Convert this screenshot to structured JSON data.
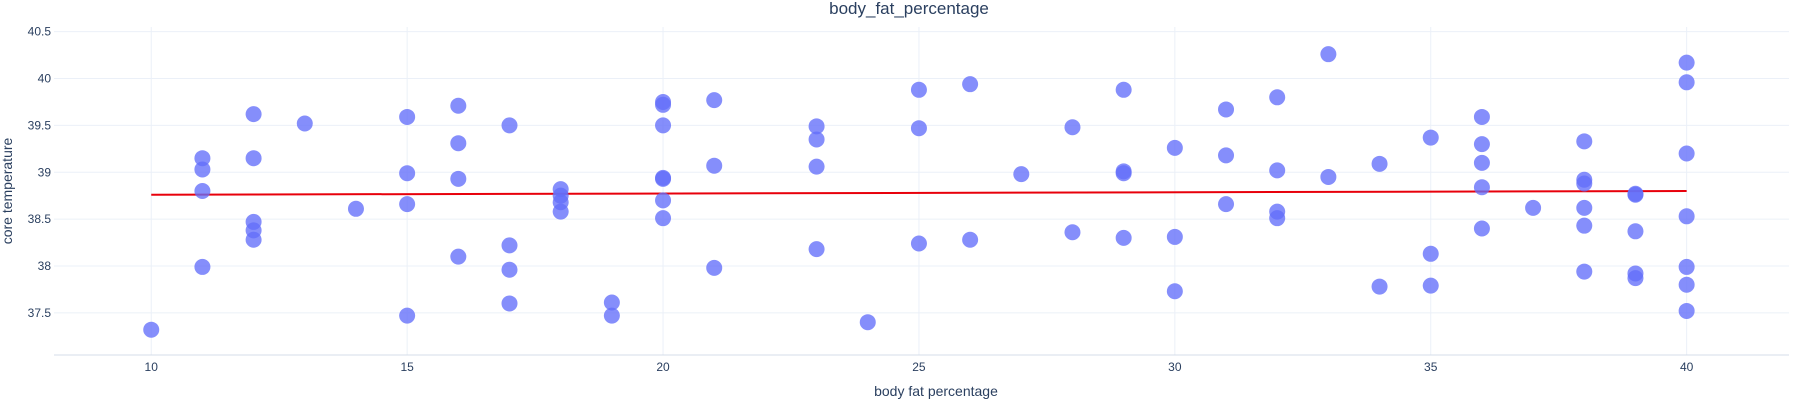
{
  "chart_data": {
    "type": "scatter",
    "title": "body_fat_percentage",
    "xlabel": "body fat percentage",
    "ylabel": "core temperature",
    "xlim": [
      8.1,
      42
    ],
    "ylim": [
      37.05,
      40.55
    ],
    "xticks": [
      10,
      15,
      20,
      25,
      30,
      35,
      40
    ],
    "xtick_labels": [
      "10",
      "15",
      "20",
      "25",
      "30",
      "35",
      "40"
    ],
    "yticks": [
      37.5,
      38,
      38.5,
      39,
      39.5,
      40,
      40.5
    ],
    "ytick_labels": [
      "37.5",
      "38",
      "38.5",
      "39",
      "39.5",
      "40",
      "40.5"
    ],
    "grid": true,
    "marker_color": "#636efa",
    "trendline_color": "#e8000b",
    "trendline": {
      "x": [
        10,
        40
      ],
      "y": [
        38.76,
        38.8
      ]
    },
    "points": [
      {
        "x": 10,
        "y": 37.32
      },
      {
        "x": 11,
        "y": 39.15
      },
      {
        "x": 11,
        "y": 39.03
      },
      {
        "x": 11,
        "y": 38.8
      },
      {
        "x": 11,
        "y": 37.99
      },
      {
        "x": 12,
        "y": 39.62
      },
      {
        "x": 12,
        "y": 39.15
      },
      {
        "x": 12,
        "y": 38.47
      },
      {
        "x": 12,
        "y": 38.38
      },
      {
        "x": 12,
        "y": 38.28
      },
      {
        "x": 13,
        "y": 39.52
      },
      {
        "x": 14,
        "y": 38.61
      },
      {
        "x": 15,
        "y": 39.59
      },
      {
        "x": 15,
        "y": 38.99
      },
      {
        "x": 15,
        "y": 38.66
      },
      {
        "x": 15,
        "y": 37.47
      },
      {
        "x": 16,
        "y": 39.71
      },
      {
        "x": 16,
        "y": 39.31
      },
      {
        "x": 16,
        "y": 38.93
      },
      {
        "x": 16,
        "y": 38.1
      },
      {
        "x": 17,
        "y": 39.5
      },
      {
        "x": 17,
        "y": 38.22
      },
      {
        "x": 17,
        "y": 37.96
      },
      {
        "x": 17,
        "y": 37.6
      },
      {
        "x": 18,
        "y": 38.82
      },
      {
        "x": 18,
        "y": 38.75
      },
      {
        "x": 18,
        "y": 38.68
      },
      {
        "x": 18,
        "y": 38.58
      },
      {
        "x": 19,
        "y": 37.61
      },
      {
        "x": 19,
        "y": 37.47
      },
      {
        "x": 20,
        "y": 39.75
      },
      {
        "x": 20,
        "y": 39.72
      },
      {
        "x": 20,
        "y": 39.5
      },
      {
        "x": 20,
        "y": 38.94
      },
      {
        "x": 20,
        "y": 38.93
      },
      {
        "x": 20,
        "y": 38.7
      },
      {
        "x": 20,
        "y": 38.51
      },
      {
        "x": 21,
        "y": 39.77
      },
      {
        "x": 21,
        "y": 39.07
      },
      {
        "x": 21,
        "y": 37.98
      },
      {
        "x": 23,
        "y": 39.49
      },
      {
        "x": 23,
        "y": 39.35
      },
      {
        "x": 23,
        "y": 39.06
      },
      {
        "x": 23,
        "y": 38.18
      },
      {
        "x": 24,
        "y": 37.4
      },
      {
        "x": 25,
        "y": 39.88
      },
      {
        "x": 25,
        "y": 39.47
      },
      {
        "x": 25,
        "y": 38.24
      },
      {
        "x": 26,
        "y": 39.94
      },
      {
        "x": 26,
        "y": 38.28
      },
      {
        "x": 27,
        "y": 38.98
      },
      {
        "x": 28,
        "y": 39.48
      },
      {
        "x": 28,
        "y": 38.36
      },
      {
        "x": 29,
        "y": 39.88
      },
      {
        "x": 29,
        "y": 39.01
      },
      {
        "x": 29,
        "y": 38.99
      },
      {
        "x": 29,
        "y": 38.3
      },
      {
        "x": 30,
        "y": 39.26
      },
      {
        "x": 30,
        "y": 38.31
      },
      {
        "x": 30,
        "y": 37.73
      },
      {
        "x": 31,
        "y": 39.67
      },
      {
        "x": 31,
        "y": 39.18
      },
      {
        "x": 31,
        "y": 38.66
      },
      {
        "x": 32,
        "y": 39.8
      },
      {
        "x": 32,
        "y": 39.02
      },
      {
        "x": 32,
        "y": 38.58
      },
      {
        "x": 32,
        "y": 38.51
      },
      {
        "x": 33,
        "y": 40.26
      },
      {
        "x": 33,
        "y": 38.95
      },
      {
        "x": 34,
        "y": 39.09
      },
      {
        "x": 34,
        "y": 37.78
      },
      {
        "x": 35,
        "y": 39.37
      },
      {
        "x": 35,
        "y": 38.13
      },
      {
        "x": 35,
        "y": 37.79
      },
      {
        "x": 36,
        "y": 39.59
      },
      {
        "x": 36,
        "y": 39.3
      },
      {
        "x": 36,
        "y": 39.1
      },
      {
        "x": 36,
        "y": 38.84
      },
      {
        "x": 36,
        "y": 38.4
      },
      {
        "x": 37,
        "y": 38.62
      },
      {
        "x": 38,
        "y": 39.33
      },
      {
        "x": 38,
        "y": 38.92
      },
      {
        "x": 38,
        "y": 38.88
      },
      {
        "x": 38,
        "y": 38.62
      },
      {
        "x": 38,
        "y": 38.43
      },
      {
        "x": 38,
        "y": 37.94
      },
      {
        "x": 39,
        "y": 38.77
      },
      {
        "x": 39,
        "y": 38.76
      },
      {
        "x": 39,
        "y": 38.37
      },
      {
        "x": 39,
        "y": 37.92
      },
      {
        "x": 39,
        "y": 37.87
      },
      {
        "x": 40,
        "y": 40.17
      },
      {
        "x": 40,
        "y": 39.96
      },
      {
        "x": 40,
        "y": 39.2
      },
      {
        "x": 40,
        "y": 38.53
      },
      {
        "x": 40,
        "y": 37.99
      },
      {
        "x": 40,
        "y": 37.8
      },
      {
        "x": 40,
        "y": 37.52
      }
    ]
  }
}
